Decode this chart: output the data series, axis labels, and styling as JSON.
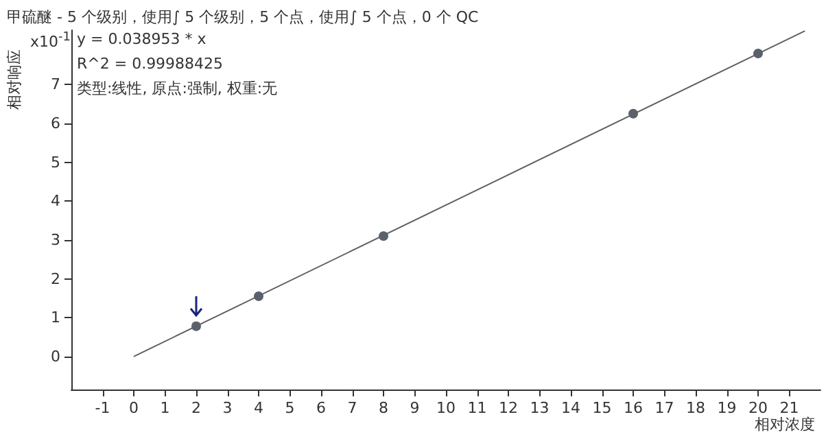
{
  "chart_data": {
    "type": "scatter",
    "title": "甲硫醚 - 5 个级别，使用∫ 5 个级别，5 个点，使用∫ 5 个点，0 个 QC",
    "xlabel": "相对浓度",
    "ylabel": "相对响应",
    "annotations": [
      "x10$^{-1}$",
      "y = 0.038953 * x",
      "R^2 = 0.99988425",
      "类型:线性, 原点:强制, 权重:无"
    ],
    "series": [
      {
        "color": "#2f3b48",
        "x": [
          2,
          4,
          8,
          16,
          20
        ],
        "values": [
          0.78,
          1.55,
          3.1,
          6.25,
          7.8
        ]
      },
      {
        "type": "line",
        "marker": "none",
        "color": "#606060",
        "x": [
          0,
          21.5
        ],
        "values": [
          0,
          8.38
        ]
      }
    ],
    "xlim": [
      -2,
      22
    ],
    "xticks": [
      -1,
      0,
      1,
      2,
      3,
      4,
      5,
      6,
      7,
      8,
      9,
      10,
      11,
      12,
      13,
      14,
      15,
      16,
      17,
      18,
      19,
      20,
      21
    ],
    "ylim": [
      -0.85,
      8.4
    ],
    "yticks": [
      0,
      1,
      2,
      3,
      4,
      5,
      6,
      7
    ],
    "grid": false,
    "marker": "circle",
    "line_style": "solid"
  }
}
